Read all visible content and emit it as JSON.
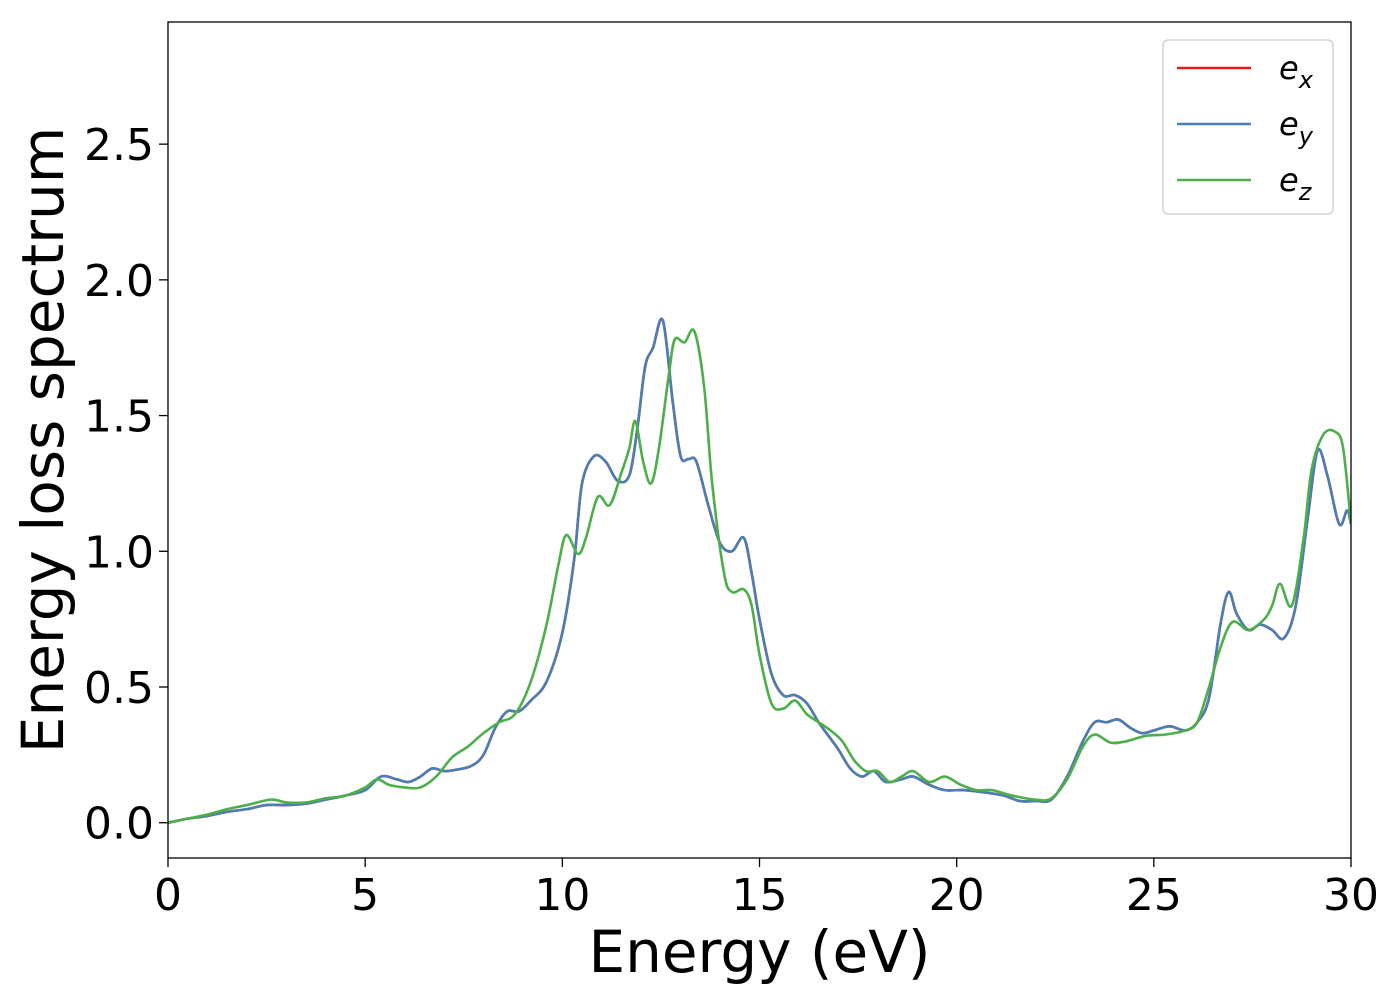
{
  "chart_data": {
    "type": "line",
    "title": "",
    "xlabel": "Energy (eV)",
    "ylabel": "Energy loss spectrum",
    "xlim": [
      0,
      30
    ],
    "ylim": [
      -0.13,
      2.95
    ],
    "xticks": [
      0,
      5,
      10,
      15,
      20,
      25,
      30
    ],
    "xtick_labels": [
      "0",
      "5",
      "10",
      "15",
      "20",
      "25",
      "30"
    ],
    "yticks": [
      0.0,
      0.5,
      1.0,
      1.5,
      2.0,
      2.5
    ],
    "ytick_labels": [
      "0.0",
      "0.5",
      "1.0",
      "1.5",
      "2.0",
      "2.5"
    ],
    "grid": false,
    "legend_position": "top-right",
    "series": [
      {
        "name": "e_x",
        "legend_base": "e",
        "legend_sub": "x",
        "color": "#e41a1c",
        "points": [
          [
            0,
            0.0
          ],
          [
            0.5,
            0.015
          ],
          [
            1,
            0.025
          ],
          [
            1.5,
            0.04
          ],
          [
            2,
            0.05
          ],
          [
            2.5,
            0.065
          ],
          [
            3,
            0.065
          ],
          [
            3.5,
            0.07
          ],
          [
            4,
            0.085
          ],
          [
            4.5,
            0.1
          ],
          [
            5,
            0.12
          ],
          [
            5.4,
            0.17
          ],
          [
            5.8,
            0.16
          ],
          [
            6.1,
            0.15
          ],
          [
            6.4,
            0.17
          ],
          [
            6.7,
            0.2
          ],
          [
            7,
            0.19
          ],
          [
            7.3,
            0.195
          ],
          [
            7.7,
            0.21
          ],
          [
            8,
            0.25
          ],
          [
            8.3,
            0.35
          ],
          [
            8.6,
            0.41
          ],
          [
            8.9,
            0.41
          ],
          [
            9.2,
            0.45
          ],
          [
            9.6,
            0.52
          ],
          [
            10,
            0.7
          ],
          [
            10.3,
            0.97
          ],
          [
            10.5,
            1.25
          ],
          [
            10.8,
            1.35
          ],
          [
            11.1,
            1.33
          ],
          [
            11.4,
            1.26
          ],
          [
            11.7,
            1.28
          ],
          [
            11.9,
            1.45
          ],
          [
            12.1,
            1.68
          ],
          [
            12.3,
            1.75
          ],
          [
            12.55,
            1.85
          ],
          [
            12.8,
            1.55
          ],
          [
            13.0,
            1.35
          ],
          [
            13.2,
            1.34
          ],
          [
            13.4,
            1.33
          ],
          [
            13.7,
            1.17
          ],
          [
            14.0,
            1.03
          ],
          [
            14.3,
            1.0
          ],
          [
            14.6,
            1.05
          ],
          [
            14.8,
            0.92
          ],
          [
            15.0,
            0.75
          ],
          [
            15.3,
            0.55
          ],
          [
            15.6,
            0.47
          ],
          [
            15.9,
            0.47
          ],
          [
            16.2,
            0.44
          ],
          [
            16.5,
            0.37
          ],
          [
            16.8,
            0.31
          ],
          [
            17.0,
            0.27
          ],
          [
            17.3,
            0.2
          ],
          [
            17.6,
            0.17
          ],
          [
            17.9,
            0.19
          ],
          [
            18.2,
            0.15
          ],
          [
            18.6,
            0.16
          ],
          [
            18.9,
            0.17
          ],
          [
            19.3,
            0.14
          ],
          [
            19.7,
            0.12
          ],
          [
            20.2,
            0.12
          ],
          [
            20.8,
            0.11
          ],
          [
            21.2,
            0.1
          ],
          [
            21.6,
            0.08
          ],
          [
            22.0,
            0.08
          ],
          [
            22.4,
            0.085
          ],
          [
            22.8,
            0.17
          ],
          [
            23.2,
            0.3
          ],
          [
            23.5,
            0.37
          ],
          [
            23.8,
            0.37
          ],
          [
            24.1,
            0.38
          ],
          [
            24.4,
            0.35
          ],
          [
            24.7,
            0.33
          ],
          [
            25.0,
            0.34
          ],
          [
            25.4,
            0.355
          ],
          [
            25.8,
            0.34
          ],
          [
            26.1,
            0.37
          ],
          [
            26.4,
            0.46
          ],
          [
            26.7,
            0.74
          ],
          [
            26.9,
            0.85
          ],
          [
            27.1,
            0.77
          ],
          [
            27.4,
            0.71
          ],
          [
            27.7,
            0.73
          ],
          [
            28.0,
            0.71
          ],
          [
            28.3,
            0.68
          ],
          [
            28.6,
            0.8
          ],
          [
            28.9,
            1.12
          ],
          [
            29.15,
            1.37
          ],
          [
            29.4,
            1.28
          ],
          [
            29.7,
            1.1
          ],
          [
            29.9,
            1.15
          ],
          [
            30,
            1.1
          ]
        ]
      },
      {
        "name": "e_y",
        "legend_base": "e",
        "legend_sub": "y",
        "color": "#4a7fb5",
        "points": [
          [
            0,
            0.0
          ],
          [
            0.5,
            0.015
          ],
          [
            1,
            0.025
          ],
          [
            1.5,
            0.04
          ],
          [
            2,
            0.05
          ],
          [
            2.5,
            0.065
          ],
          [
            3,
            0.065
          ],
          [
            3.5,
            0.07
          ],
          [
            4,
            0.085
          ],
          [
            4.5,
            0.1
          ],
          [
            5,
            0.12
          ],
          [
            5.4,
            0.17
          ],
          [
            5.8,
            0.16
          ],
          [
            6.1,
            0.15
          ],
          [
            6.4,
            0.17
          ],
          [
            6.7,
            0.2
          ],
          [
            7,
            0.19
          ],
          [
            7.3,
            0.195
          ],
          [
            7.7,
            0.21
          ],
          [
            8,
            0.25
          ],
          [
            8.3,
            0.35
          ],
          [
            8.6,
            0.41
          ],
          [
            8.9,
            0.41
          ],
          [
            9.2,
            0.45
          ],
          [
            9.6,
            0.52
          ],
          [
            10,
            0.7
          ],
          [
            10.3,
            0.97
          ],
          [
            10.5,
            1.25
          ],
          [
            10.8,
            1.35
          ],
          [
            11.1,
            1.33
          ],
          [
            11.4,
            1.26
          ],
          [
            11.7,
            1.28
          ],
          [
            11.9,
            1.45
          ],
          [
            12.1,
            1.68
          ],
          [
            12.3,
            1.75
          ],
          [
            12.55,
            1.85
          ],
          [
            12.8,
            1.55
          ],
          [
            13.0,
            1.35
          ],
          [
            13.2,
            1.34
          ],
          [
            13.4,
            1.33
          ],
          [
            13.7,
            1.17
          ],
          [
            14.0,
            1.03
          ],
          [
            14.3,
            1.0
          ],
          [
            14.6,
            1.05
          ],
          [
            14.8,
            0.92
          ],
          [
            15.0,
            0.75
          ],
          [
            15.3,
            0.55
          ],
          [
            15.6,
            0.47
          ],
          [
            15.9,
            0.47
          ],
          [
            16.2,
            0.44
          ],
          [
            16.5,
            0.37
          ],
          [
            16.8,
            0.31
          ],
          [
            17.0,
            0.27
          ],
          [
            17.3,
            0.2
          ],
          [
            17.6,
            0.17
          ],
          [
            17.9,
            0.19
          ],
          [
            18.2,
            0.15
          ],
          [
            18.6,
            0.16
          ],
          [
            18.9,
            0.17
          ],
          [
            19.3,
            0.14
          ],
          [
            19.7,
            0.12
          ],
          [
            20.2,
            0.12
          ],
          [
            20.8,
            0.11
          ],
          [
            21.2,
            0.1
          ],
          [
            21.6,
            0.08
          ],
          [
            22.0,
            0.08
          ],
          [
            22.4,
            0.085
          ],
          [
            22.8,
            0.17
          ],
          [
            23.2,
            0.3
          ],
          [
            23.5,
            0.37
          ],
          [
            23.8,
            0.37
          ],
          [
            24.1,
            0.38
          ],
          [
            24.4,
            0.35
          ],
          [
            24.7,
            0.33
          ],
          [
            25.0,
            0.34
          ],
          [
            25.4,
            0.355
          ],
          [
            25.8,
            0.34
          ],
          [
            26.1,
            0.37
          ],
          [
            26.4,
            0.46
          ],
          [
            26.7,
            0.74
          ],
          [
            26.9,
            0.85
          ],
          [
            27.1,
            0.77
          ],
          [
            27.4,
            0.71
          ],
          [
            27.7,
            0.73
          ],
          [
            28.0,
            0.71
          ],
          [
            28.3,
            0.68
          ],
          [
            28.6,
            0.8
          ],
          [
            28.9,
            1.12
          ],
          [
            29.15,
            1.37
          ],
          [
            29.4,
            1.28
          ],
          [
            29.7,
            1.1
          ],
          [
            29.9,
            1.15
          ],
          [
            30,
            1.1
          ]
        ]
      },
      {
        "name": "e_z",
        "legend_base": "e",
        "legend_sub": "z",
        "color": "#4daf4a",
        "points": [
          [
            0,
            0.0
          ],
          [
            0.5,
            0.015
          ],
          [
            1,
            0.03
          ],
          [
            1.5,
            0.05
          ],
          [
            2,
            0.065
          ],
          [
            2.6,
            0.085
          ],
          [
            3,
            0.075
          ],
          [
            3.5,
            0.075
          ],
          [
            4,
            0.09
          ],
          [
            4.5,
            0.1
          ],
          [
            5,
            0.13
          ],
          [
            5.3,
            0.16
          ],
          [
            5.6,
            0.14
          ],
          [
            6.0,
            0.13
          ],
          [
            6.4,
            0.13
          ],
          [
            6.8,
            0.17
          ],
          [
            7.2,
            0.24
          ],
          [
            7.6,
            0.28
          ],
          [
            8.0,
            0.33
          ],
          [
            8.4,
            0.37
          ],
          [
            8.8,
            0.4
          ],
          [
            9.2,
            0.52
          ],
          [
            9.6,
            0.73
          ],
          [
            9.9,
            0.95
          ],
          [
            10.1,
            1.06
          ],
          [
            10.4,
            0.99
          ],
          [
            10.6,
            1.05
          ],
          [
            10.9,
            1.2
          ],
          [
            11.2,
            1.17
          ],
          [
            11.5,
            1.29
          ],
          [
            11.7,
            1.38
          ],
          [
            11.85,
            1.48
          ],
          [
            12.05,
            1.33
          ],
          [
            12.25,
            1.25
          ],
          [
            12.45,
            1.38
          ],
          [
            12.7,
            1.65
          ],
          [
            12.85,
            1.78
          ],
          [
            13.1,
            1.77
          ],
          [
            13.35,
            1.81
          ],
          [
            13.6,
            1.6
          ],
          [
            13.8,
            1.25
          ],
          [
            14.1,
            0.92
          ],
          [
            14.3,
            0.85
          ],
          [
            14.6,
            0.86
          ],
          [
            14.8,
            0.8
          ],
          [
            15.0,
            0.62
          ],
          [
            15.3,
            0.44
          ],
          [
            15.6,
            0.42
          ],
          [
            15.9,
            0.45
          ],
          [
            16.2,
            0.4
          ],
          [
            16.5,
            0.37
          ],
          [
            16.8,
            0.34
          ],
          [
            17.1,
            0.3
          ],
          [
            17.4,
            0.23
          ],
          [
            17.7,
            0.19
          ],
          [
            18.0,
            0.19
          ],
          [
            18.3,
            0.15
          ],
          [
            18.6,
            0.17
          ],
          [
            18.9,
            0.19
          ],
          [
            19.3,
            0.15
          ],
          [
            19.7,
            0.17
          ],
          [
            20.1,
            0.14
          ],
          [
            20.5,
            0.12
          ],
          [
            20.9,
            0.12
          ],
          [
            21.4,
            0.1
          ],
          [
            22.0,
            0.085
          ],
          [
            22.4,
            0.09
          ],
          [
            22.8,
            0.16
          ],
          [
            23.2,
            0.28
          ],
          [
            23.5,
            0.325
          ],
          [
            23.9,
            0.295
          ],
          [
            24.3,
            0.3
          ],
          [
            24.8,
            0.32
          ],
          [
            25.3,
            0.325
          ],
          [
            25.8,
            0.34
          ],
          [
            26.1,
            0.37
          ],
          [
            26.4,
            0.5
          ],
          [
            26.7,
            0.65
          ],
          [
            27.0,
            0.74
          ],
          [
            27.4,
            0.71
          ],
          [
            27.8,
            0.75
          ],
          [
            28.0,
            0.8
          ],
          [
            28.2,
            0.88
          ],
          [
            28.5,
            0.8
          ],
          [
            28.8,
            1.05
          ],
          [
            29.0,
            1.3
          ],
          [
            29.3,
            1.43
          ],
          [
            29.6,
            1.44
          ],
          [
            29.8,
            1.38
          ],
          [
            30,
            1.1
          ]
        ]
      }
    ]
  }
}
